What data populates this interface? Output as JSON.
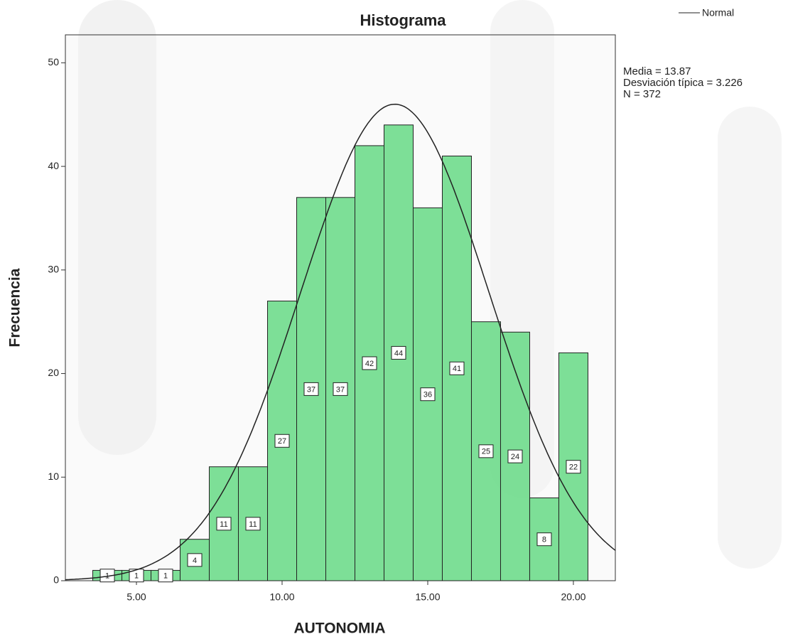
{
  "chart_data": {
    "type": "histogram",
    "title": "Histograma",
    "x_label": "AUTONOMIA",
    "y_label": "Frecuencia",
    "bins": [
      3.5,
      4.5,
      5.5,
      6.5,
      7.5,
      8.5,
      9.5,
      10.5,
      11.5,
      12.5,
      13.5,
      14.5,
      15.5,
      16.5,
      17.5,
      18.5,
      19.5,
      20.5
    ],
    "counts": [
      1,
      1,
      1,
      4,
      11,
      11,
      27,
      37,
      37,
      42,
      44,
      36,
      41,
      25,
      24,
      8,
      22
    ],
    "color": "#6fdc8c",
    "xlim": [
      2.56,
      21.44
    ],
    "ylim": [
      0,
      52.7
    ],
    "xticks": [
      {
        "value": 5,
        "label": "5.00"
      },
      {
        "value": 10,
        "label": "10.00"
      },
      {
        "value": 15,
        "label": "15.00"
      },
      {
        "value": 20,
        "label": "20.00"
      }
    ],
    "yticks": [
      0,
      10,
      20,
      30,
      40,
      50
    ],
    "normal": {
      "name": "Normal",
      "color": "#222222",
      "mean": {
        "label": "Media = 13.87",
        "value": 13.87
      },
      "sd": {
        "label": "Desviación típica = 3.226",
        "value": 3.226
      },
      "n": {
        "label": "N = 372",
        "value": 372
      }
    }
  }
}
